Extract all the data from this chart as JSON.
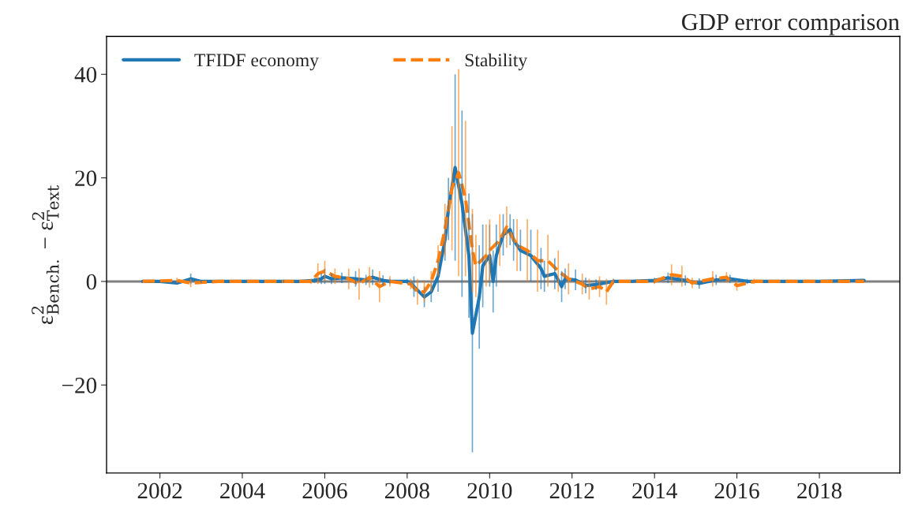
{
  "chart_data": {
    "type": "line",
    "title": "GDP error comparison",
    "ylabel": "ε$^{2}$$_{Bench.}$ − ε$^{2}$$_{Text}$",
    "xlim": [
      "2000-09-15",
      "2019-12-15"
    ],
    "xticks": [
      "2002",
      "2004",
      "2006",
      "2008",
      "2010",
      "2012",
      "2014",
      "2016",
      "2018"
    ],
    "ylim": [
      -37,
      47.3
    ],
    "yticks": [
      -20,
      0,
      20,
      40
    ],
    "legend": "top left",
    "grid": false,
    "ref_lines": [
      {
        "axis": "y",
        "value": 0,
        "label": null,
        "color": "#808080",
        "line_style": "solid"
      }
    ],
    "series": [
      {
        "name": "TFIDF economy",
        "color": "#1f77b4",
        "line_style": "solid",
        "x": [
          "2001-08",
          "2002-01",
          "2002-06",
          "2002-10",
          "2003-01",
          "2003-06",
          "2004-01",
          "2004-06",
          "2005-01",
          "2005-06",
          "2005-10",
          "2005-12",
          "2006-01",
          "2006-03",
          "2006-06",
          "2006-10",
          "2007-01",
          "2007-03",
          "2007-06",
          "2007-08",
          "2008-01",
          "2008-02",
          "2008-03",
          "2008-06",
          "2008-08",
          "2008-10",
          "2008-12",
          "2009-01",
          "2009-03",
          "2009-05",
          "2009-07",
          "2009-08",
          "2009-10",
          "2009-11",
          "2010-01",
          "2010-02",
          "2010-03",
          "2010-05",
          "2010-07",
          "2010-08",
          "2010-10",
          "2011-01",
          "2011-04",
          "2011-05",
          "2011-08",
          "2011-10",
          "2011-11",
          "2012-02",
          "2012-05",
          "2012-08",
          "2013-01",
          "2013-06",
          "2014-01",
          "2014-05",
          "2014-10",
          "2015-02",
          "2015-07",
          "2015-11",
          "2016-04",
          "2017-01",
          "2018-01",
          "2019-02"
        ],
        "values": [
          0,
          0,
          -0.3,
          0.5,
          0,
          0,
          0,
          0,
          0,
          0,
          0.2,
          0.5,
          1,
          0.5,
          0.7,
          0.5,
          0.3,
          0.8,
          0.2,
          0,
          0,
          -0.3,
          -1,
          -3,
          -2,
          1,
          8,
          14,
          22,
          15,
          5,
          -10,
          -3,
          3,
          5,
          0,
          5,
          9,
          10,
          8,
          6,
          5,
          2.5,
          1,
          1.5,
          -1,
          0.5,
          0.3,
          -0.8,
          -0.6,
          0,
          0,
          0.2,
          0.7,
          0.2,
          -0.4,
          0.3,
          0.5,
          0,
          0,
          0,
          0.2
        ],
        "errors": [
          null,
          null,
          0.3,
          1,
          0.3,
          null,
          0.3,
          null,
          0.3,
          null,
          0.5,
          1,
          1.5,
          1,
          1,
          1.5,
          1,
          1.5,
          1,
          0.5,
          0.5,
          0.5,
          2,
          2,
          2,
          3,
          4,
          6,
          18,
          18,
          12,
          23,
          10,
          8,
          6,
          6,
          6,
          4,
          3,
          4,
          4,
          5,
          4,
          3,
          3,
          3,
          2,
          2,
          1.5,
          1,
          0.5,
          null,
          0.5,
          1,
          1,
          1,
          1,
          0.8,
          0.5,
          null,
          null,
          null
        ]
      },
      {
        "name": "Stability",
        "color": "#ff7f0e",
        "line_style": "dashed",
        "x": [
          "2001-08",
          "2002-06",
          "2002-10",
          "2003-06",
          "2004-06",
          "2005-06",
          "2005-09",
          "2005-11",
          "2006-01",
          "2006-04",
          "2006-08",
          "2006-11",
          "2007-02",
          "2007-05",
          "2007-08",
          "2008-02",
          "2008-04",
          "2008-06",
          "2008-08",
          "2008-10",
          "2008-12",
          "2009-02",
          "2009-04",
          "2009-06",
          "2009-08",
          "2009-09",
          "2009-12",
          "2010-01",
          "2010-04",
          "2010-06",
          "2010-09",
          "2010-12",
          "2011-03",
          "2011-06",
          "2011-09",
          "2011-12",
          "2012-04",
          "2012-06",
          "2012-09",
          "2012-11",
          "2013-01",
          "2014-01",
          "2014-06",
          "2014-09",
          "2014-12",
          "2015-06",
          "2015-10",
          "2016-01",
          "2016-06",
          "2017-06",
          "2019-02"
        ],
        "values": [
          0,
          0.2,
          -0.3,
          0,
          0,
          0,
          0,
          1.5,
          2,
          1,
          0.5,
          -0.5,
          0.8,
          -1,
          0,
          -0.5,
          -2,
          -2,
          0,
          4,
          10,
          18,
          21,
          16,
          6,
          3,
          5,
          6,
          8,
          10.5,
          7,
          6,
          4,
          4,
          2,
          0.5,
          -0.5,
          -1.5,
          -1,
          -2,
          0,
          0,
          1.3,
          1,
          -0.3,
          0.5,
          0.8,
          -0.8,
          0,
          0,
          0
        ],
        "errors": [
          null,
          0.5,
          0.8,
          null,
          null,
          null,
          0.5,
          2,
          2,
          1.5,
          2,
          3,
          2,
          3,
          1,
          1,
          2.5,
          2,
          2,
          3,
          5,
          12,
          20,
          15,
          8,
          6,
          6,
          6,
          5,
          4,
          5,
          6,
          6,
          5,
          4,
          3,
          2,
          2,
          2,
          2.5,
          0.5,
          0.5,
          2,
          2,
          1,
          1.5,
          1,
          1,
          0.5,
          null,
          null
        ]
      }
    ]
  }
}
